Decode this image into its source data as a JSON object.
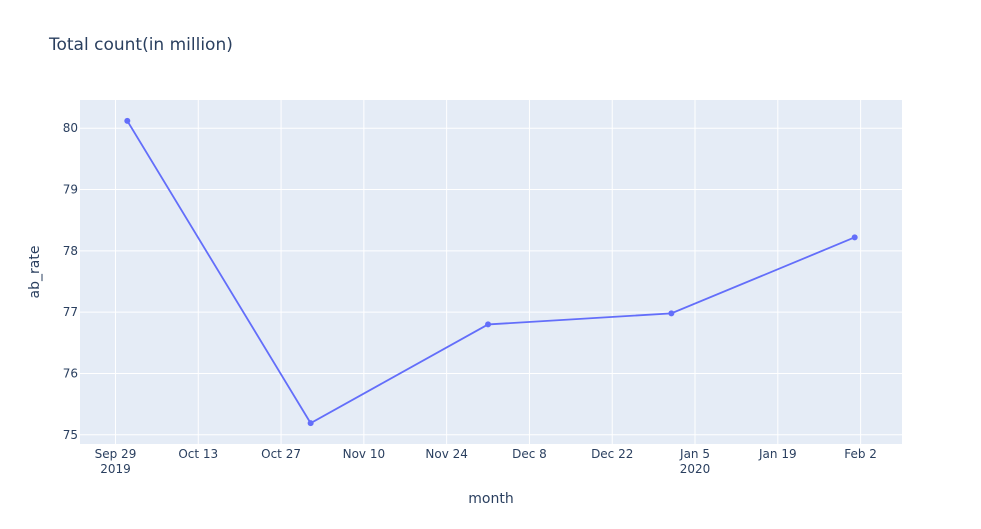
{
  "chart_data": {
    "type": "line",
    "title": "Total count(in million)",
    "x_label": "month",
    "y_label": "ab_rate",
    "x": [
      "2019-10-01",
      "2019-11-01",
      "2019-12-01",
      "2020-01-01",
      "2020-02-01"
    ],
    "series": [
      {
        "name": "ab_rate",
        "color": "#636efa",
        "values": [
          80.12,
          75.19,
          76.8,
          76.98,
          78.22
        ]
      }
    ],
    "xlim": [
      "2019-09-23",
      "2020-02-09"
    ],
    "xticks": [
      {
        "value": "2019-09-29",
        "label": "Sep 29\n2019"
      },
      {
        "value": "2019-10-13",
        "label": "Oct 13"
      },
      {
        "value": "2019-10-27",
        "label": "Oct 27"
      },
      {
        "value": "2019-11-10",
        "label": "Nov 10"
      },
      {
        "value": "2019-11-24",
        "label": "Nov 24"
      },
      {
        "value": "2019-12-08",
        "label": "Dec 8"
      },
      {
        "value": "2019-12-22",
        "label": "Dec 22"
      },
      {
        "value": "2020-01-05",
        "label": "Jan 5\n2020"
      },
      {
        "value": "2020-01-19",
        "label": "Jan 19"
      },
      {
        "value": "2020-02-02",
        "label": "Feb 2"
      }
    ],
    "ylim": [
      74.85,
      80.46
    ],
    "yticks": [
      75,
      76,
      77,
      78,
      79,
      80
    ],
    "grid": true,
    "background": "#e5ecf6"
  }
}
